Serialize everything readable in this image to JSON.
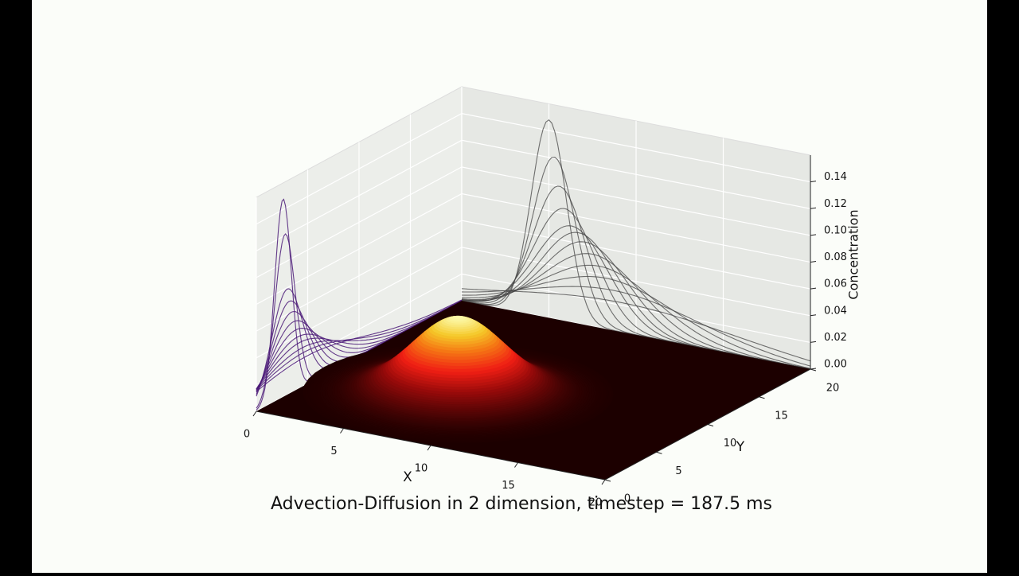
{
  "chart_data": {
    "type": "surface3d",
    "title": "Advection-Diffusion in 2 dimension, timestep = 187.5 ms",
    "xlabel": "X",
    "ylabel": "Y",
    "zlabel": "Concentration",
    "xlim": [
      0,
      20
    ],
    "ylim": [
      0,
      20
    ],
    "zlim": [
      0,
      0.16
    ],
    "xticks": [
      0,
      5,
      10,
      15,
      20
    ],
    "yticks": [
      0,
      5,
      10,
      15,
      20
    ],
    "zticks": [
      {
        "value": 0,
        "label": "0.00"
      },
      {
        "value": 0.02,
        "label": "0.02"
      },
      {
        "value": 0.04,
        "label": "0.04"
      },
      {
        "value": 0.06,
        "label": "0.06"
      },
      {
        "value": 0.08,
        "label": "0.08"
      },
      {
        "value": 0.1,
        "label": "0.10"
      },
      {
        "value": 0.12,
        "label": "0.12"
      },
      {
        "value": 0.14,
        "label": "0.14"
      }
    ],
    "grid": true,
    "surface": {
      "peak": 0.057,
      "center": [
        7.1,
        7.6
      ]
    },
    "yz_profiles": {
      "color": "#4b1a78",
      "centers": [
        2.6,
        2.8,
        3.0,
        3.2,
        3.4,
        3.6,
        3.8,
        4.0,
        4.2,
        4.4,
        4.6,
        4.8
      ],
      "peaks": [
        0.148,
        0.121,
        0.079,
        0.069,
        0.06,
        0.052,
        0.045,
        0.039,
        0.034,
        0.029,
        0.025,
        0.021
      ]
    },
    "xz_profiles": {
      "color": "#444444",
      "centers": [
        5.0,
        5.3,
        5.6,
        5.9,
        6.3,
        6.7,
        7.1,
        7.5,
        7.9,
        8.3,
        8.7,
        9.1
      ],
      "peaks": [
        0.148,
        0.121,
        0.1,
        0.084,
        0.072,
        0.068,
        0.062,
        0.054,
        0.046,
        0.038,
        0.03,
        0.022
      ]
    }
  }
}
